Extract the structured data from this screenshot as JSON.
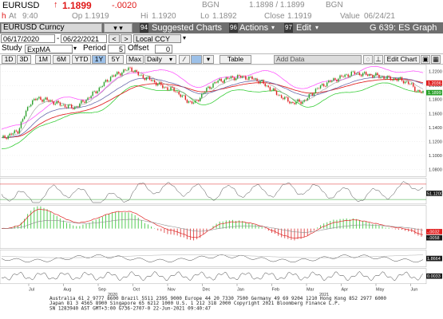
{
  "quote": {
    "ticker": "EURUSD",
    "last": "1.1899",
    "change": "-.0020",
    "bgn_label": "BGN",
    "bid_ask": "1.1898 / 1.1899",
    "bgn_label2": "BGN",
    "at_label": "At",
    "time": "9:40",
    "op_label": "Op",
    "open": "1.1919",
    "hi_label": "Hi",
    "high": "1.1920",
    "lo_label": "Lo",
    "low": "1.1892",
    "close_label": "Close",
    "close": "1.1919",
    "value_label": "Value",
    "value_date": "06/24/21"
  },
  "toolbar": {
    "security": "EURUSD Curncy",
    "suggested_num": "94",
    "suggested_label": "Suggested Charts",
    "actions_num": "96",
    "actions_label": "Actions",
    "edit_num": "97",
    "edit_label": "Edit",
    "graph_label": "G 639: ES Graph"
  },
  "range": {
    "start": "06/17/2020",
    "end": "06/22/2021",
    "prev": "<",
    "next": ">",
    "ccy": "Local CCY"
  },
  "study": {
    "label": "Study",
    "value": "ExpMA",
    "period_label": "Period",
    "period": "5",
    "offset_label": "Offset",
    "offset": "0"
  },
  "periods": [
    "1D",
    "3D",
    "1M",
    "6M",
    "YTD",
    "1Y",
    "5Y",
    "Max"
  ],
  "active_period": "1Y",
  "freq": "Daily",
  "table_label": "Table",
  "add_data_label": "Add Data",
  "edit_chart_label": "Edit Chart",
  "y_ticks": [
    "1.2200",
    "1.2000",
    "1.1800",
    "1.1600",
    "1.1400",
    "1.1200",
    "1.1000",
    "1.0800"
  ],
  "price_tags": [
    {
      "text": "1.2036",
      "color": "#e02020"
    },
    {
      "text": "1.1899",
      "color": "#2aa02a"
    }
  ],
  "panel_tags": [
    {
      "text": "51.1200",
      "color": "#1a1a1a"
    },
    {
      "text": "-.0032",
      "color": "#e02020"
    },
    {
      "text": "-.0058",
      "color": "#1a1a1a"
    },
    {
      "text": "1.8664",
      "color": "#1a1a1a"
    },
    {
      "text": "0.0033",
      "color": "#1a1a1a"
    }
  ],
  "months": [
    "Jul",
    "Aug",
    "Sep",
    "Oct",
    "Nov",
    "Dec",
    "Jan",
    "Feb",
    "Mar",
    "Apr",
    "May",
    "Jun"
  ],
  "year_labels": [
    "2020",
    "2021"
  ],
  "footer": [
    "Australia 61 2 9777 8600 Brazil 5511 2395 9000 Europe 44 20 7330 7500 Germany 49 69 9204 1210 Hong Kong 852 2977 6000",
    "Japan 81 3 4565 8900        Singapore 65 6212 1000        U.S. 1 212 318 2000          Copyright 2021 Bloomberg Finance L.P.",
    "                                                                 SN 1283940 AST  GMT+3:00 G736-2707-0 22-Jun-2021 09:40:47"
  ],
  "colors": {
    "toolbar": "#6e6e6e",
    "pink": "#ff55ff",
    "red": "#e02020",
    "green": "#2aa02a",
    "grey_line": "#888888"
  }
}
